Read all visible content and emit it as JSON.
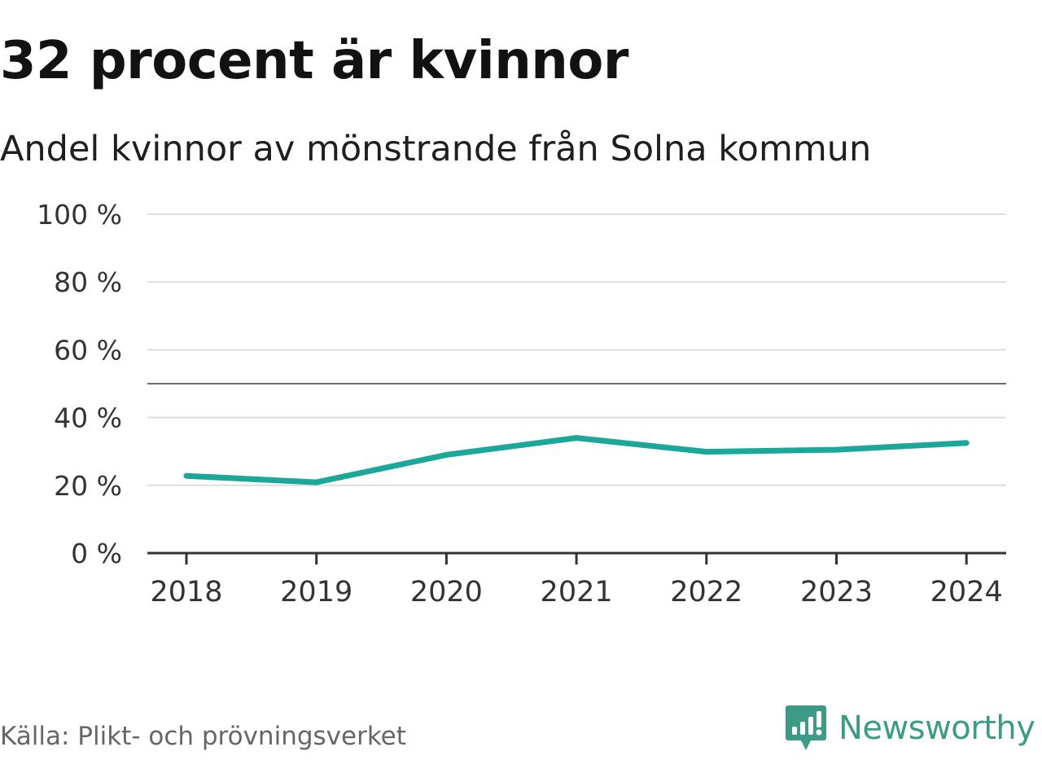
{
  "chart_data": {
    "type": "line",
    "title": "32 procent är kvinnor",
    "subtitle": "Andel kvinnor av mönstrande från Solna kommun",
    "x": [
      "2018",
      "2019",
      "2020",
      "2021",
      "2022",
      "2023",
      "2024"
    ],
    "series": [
      {
        "name": "Andel kvinnor",
        "values": [
          22.8,
          20.9,
          29.0,
          34.0,
          29.9,
          30.5,
          32.5
        ],
        "color": "#1ba89b"
      }
    ],
    "y_ticks": [
      {
        "value": 0,
        "label": "0 %"
      },
      {
        "value": 20,
        "label": "20 %"
      },
      {
        "value": 40,
        "label": "40 %"
      },
      {
        "value": 60,
        "label": "60 %"
      },
      {
        "value": 80,
        "label": "80 %"
      },
      {
        "value": 100,
        "label": "100 %"
      }
    ],
    "ylim": [
      0,
      100
    ],
    "reference_line": 50,
    "grid": true,
    "xlabel": "",
    "ylabel": ""
  },
  "source": "Källa: Plikt- och prövningsverket",
  "brand": {
    "name": "Newsworthy",
    "color": "#3c9b86",
    "icon": "newsworthy-logo-icon"
  }
}
